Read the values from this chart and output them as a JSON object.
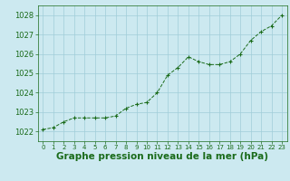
{
  "x": [
    0,
    1,
    2,
    3,
    4,
    5,
    6,
    7,
    8,
    9,
    10,
    11,
    12,
    13,
    14,
    15,
    16,
    17,
    18,
    19,
    20,
    21,
    22,
    23
  ],
  "y": [
    1022.1,
    1022.2,
    1022.5,
    1022.7,
    1022.7,
    1022.7,
    1022.7,
    1022.8,
    1023.2,
    1023.4,
    1023.5,
    1024.0,
    1024.9,
    1025.3,
    1025.85,
    1025.6,
    1025.45,
    1025.45,
    1025.6,
    1026.0,
    1026.7,
    1027.15,
    1027.45,
    1028.0
  ],
  "line_color": "#1a6b1a",
  "marker": "+",
  "marker_size": 3,
  "marker_color": "#1a6b1a",
  "bg_color": "#cce9f0",
  "grid_color": "#a0cdd8",
  "xlabel": "Graphe pression niveau de la mer (hPa)",
  "xlabel_color": "#1a6b1a",
  "xlabel_fontsize": 7.5,
  "tick_color": "#1a6b1a",
  "tick_fontsize": 6,
  "ylim": [
    1021.5,
    1028.5
  ],
  "yticks": [
    1022,
    1023,
    1024,
    1025,
    1026,
    1027,
    1028
  ],
  "xticks": [
    0,
    1,
    2,
    3,
    4,
    5,
    6,
    7,
    8,
    9,
    10,
    11,
    12,
    13,
    14,
    15,
    16,
    17,
    18,
    19,
    20,
    21,
    22,
    23
  ]
}
